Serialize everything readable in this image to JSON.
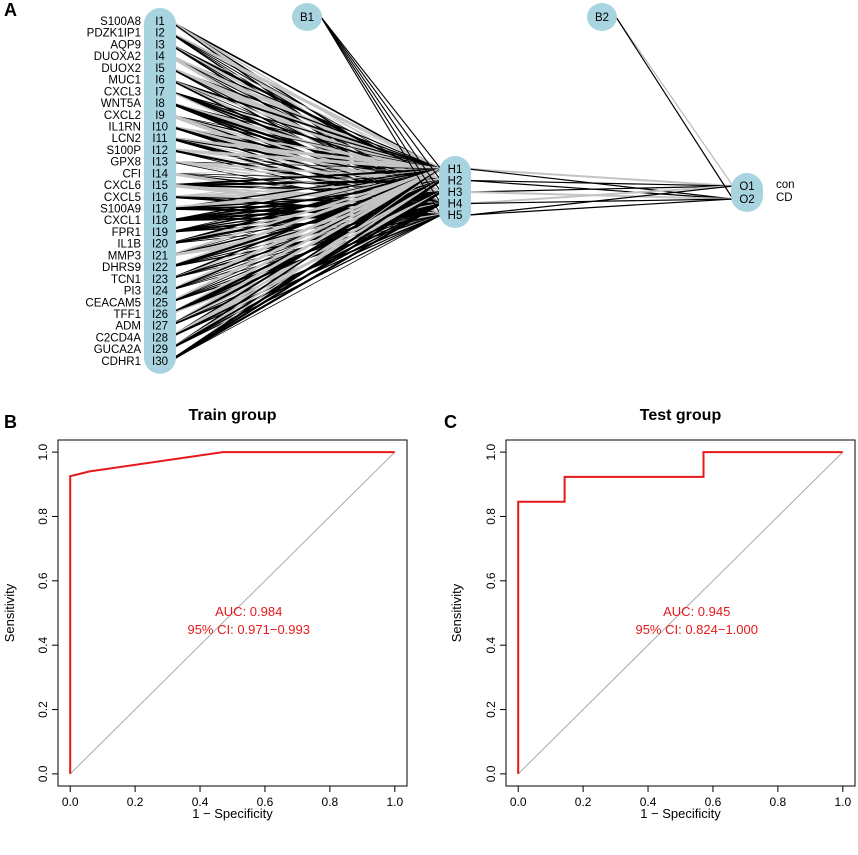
{
  "panels": {
    "a": "A",
    "b": "B",
    "c": "C"
  },
  "network": {
    "inputs": [
      "S100A8",
      "PDZK1IP1",
      "AQP9",
      "DUOXA2",
      "DUOX2",
      "MUC1",
      "CXCL3",
      "WNT5A",
      "CXCL2",
      "IL1RN",
      "LCN2",
      "S100P",
      "GPX8",
      "CFI",
      "CXCL6",
      "CXCL5",
      "S100A9",
      "CXCL1",
      "FPR1",
      "IL1B",
      "MMP3",
      "DHRS9",
      "TCN1",
      "PI3",
      "CEACAM5",
      "TFF1",
      "ADM",
      "C2CD4A",
      "GUCA2A",
      "CDHR1"
    ],
    "input_nodes": [
      "I1",
      "I2",
      "I3",
      "I4",
      "I5",
      "I6",
      "I7",
      "I8",
      "I9",
      "I10",
      "I11",
      "I12",
      "I13",
      "I14",
      "I15",
      "I16",
      "I17",
      "I18",
      "I19",
      "I20",
      "I21",
      "I22",
      "I23",
      "I24",
      "I25",
      "I26",
      "I27",
      "I28",
      "I29",
      "I30"
    ],
    "hidden_nodes": [
      "H1",
      "H2",
      "H3",
      "H4",
      "H5"
    ],
    "output_nodes": [
      "O1",
      "O2"
    ],
    "output_labels": [
      "con",
      "CD"
    ],
    "bias_nodes": [
      "B1",
      "B2"
    ]
  },
  "chart_data": [
    {
      "type": "line",
      "title": "Train group",
      "xlabel": "1 − Specificity",
      "ylabel": "Sensitivity",
      "xlim": [
        0,
        1
      ],
      "ylim": [
        0,
        1
      ],
      "xticks": [
        "0.0",
        "0.2",
        "0.4",
        "0.6",
        "0.8",
        "1.0"
      ],
      "yticks": [
        "0.0",
        "0.2",
        "0.4",
        "0.6",
        "0.8",
        "1.0"
      ],
      "auc_text": "AUC: 0.984",
      "ci_text": "95% CI: 0.971−0.993",
      "curve_color": "#e8191a",
      "diagonal_color": "#aaaaaa",
      "x": [
        0,
        0,
        0.02,
        0.06,
        0.47,
        1.0
      ],
      "y": [
        0,
        0.925,
        0.93,
        0.94,
        1.0,
        1.0
      ]
    },
    {
      "type": "line",
      "title": "Test group",
      "xlabel": "1 − Specificity",
      "ylabel": "Sensitivity",
      "xlim": [
        0,
        1
      ],
      "ylim": [
        0,
        1
      ],
      "xticks": [
        "0.0",
        "0.2",
        "0.4",
        "0.6",
        "0.8",
        "1.0"
      ],
      "yticks": [
        "0.0",
        "0.2",
        "0.4",
        "0.6",
        "0.8",
        "1.0"
      ],
      "auc_text": "AUC: 0.945",
      "ci_text": "95% CI: 0.824−1.000",
      "curve_color": "#e8191a",
      "diagonal_color": "#aaaaaa",
      "x": [
        0,
        0,
        0.143,
        0.143,
        0.571,
        0.571,
        1.0
      ],
      "y": [
        0,
        0.846,
        0.846,
        0.923,
        0.923,
        1.0,
        1.0
      ]
    }
  ]
}
